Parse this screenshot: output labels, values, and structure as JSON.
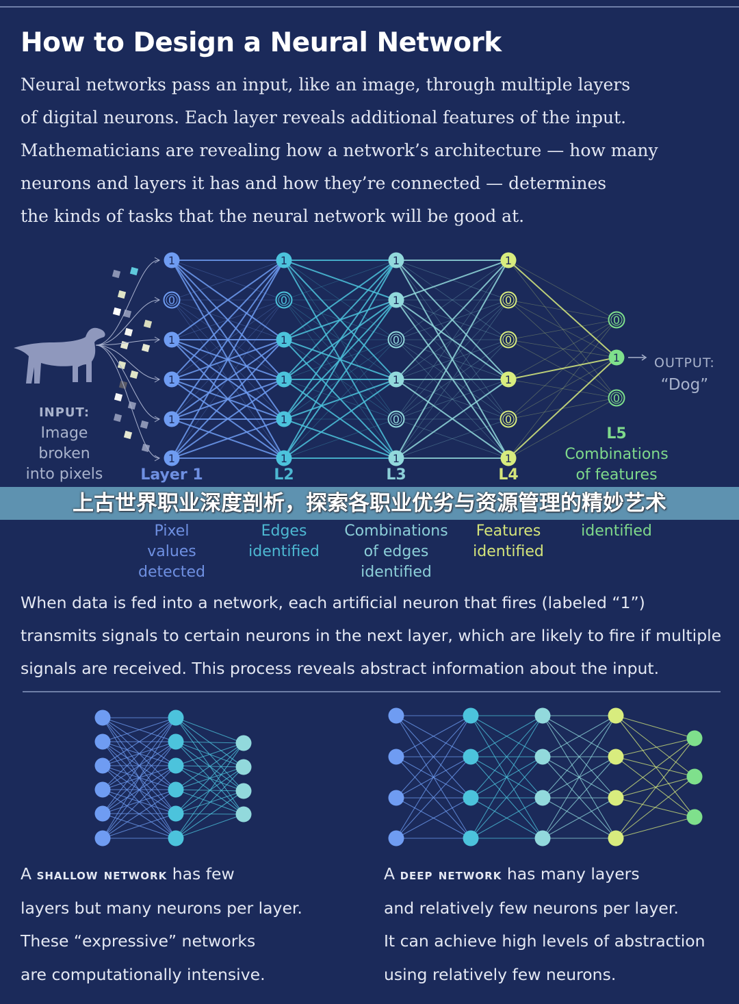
{
  "title": "How to Design a Neural Network",
  "intro_lines": [
    "Neural networks pass an input, like an image, through multiple layers",
    "of digital neurons. Each layer reveals additional features of the input.",
    "Mathematicians are revealing how a network’s architecture — how many",
    "neurons and layers it has and how they’re connected — determines",
    "the kinds of tasks that the neural network will be good at."
  ],
  "diagram": {
    "input_label": {
      "heading": "INPUT:",
      "lines": [
        "Image",
        "broken",
        "into pixels"
      ]
    },
    "output_label": {
      "heading": "OUTPUT:",
      "value": "“Dog”"
    },
    "layers": [
      {
        "color": "#6f9cf2",
        "label_color": "#6f90e2",
        "values": [
          1,
          0,
          1,
          1,
          1,
          1
        ],
        "heading": "Layer 1",
        "lines": [
          "Pixel",
          "values",
          "detected"
        ]
      },
      {
        "color": "#4cc3dc",
        "label_color": "#4db8d2",
        "values": [
          1,
          0,
          1,
          1,
          1,
          1
        ],
        "heading": "L2",
        "lines": [
          "Edges",
          "identified"
        ]
      },
      {
        "color": "#92d9dc",
        "label_color": "#8ccfd8",
        "values": [
          1,
          1,
          0,
          1,
          0,
          1
        ],
        "heading": "L3",
        "lines": [
          "Combinations",
          "of edges",
          "identified"
        ]
      },
      {
        "color": "#d8ec7e",
        "label_color": "#d4e47a",
        "values": [
          1,
          0,
          0,
          1,
          0,
          1
        ],
        "heading": "L4",
        "lines": [
          "Features",
          "identified"
        ]
      },
      {
        "color": "#7fe08c",
        "label_color": "#7fd98b",
        "values": [
          0,
          1,
          0
        ],
        "heading": "L5",
        "lines": [
          "Combinations",
          "of features",
          "identified"
        ]
      }
    ]
  },
  "banner": "上古世界职业深度剖析，探索各职业优劣与资源管理的精妙艺术",
  "explanation_lines": [
    "When data is fed into a network, each artificial neuron that fires (labeled “1”)",
    "transmits signals to certain neurons in the next layer, which are likely to fire if multiple",
    "signals are received. This process reveals abstract information about the input."
  ],
  "shallow": {
    "layer_sizes": [
      6,
      6,
      4
    ],
    "colors": [
      "#6f9cf2",
      "#4cc3dc",
      "#92d9dc"
    ],
    "caption_prefix": "A",
    "caption_term": "shallow network",
    "caption_first_rest": "has few",
    "caption_lines": [
      "layers but many neurons per layer.",
      "These “expressive” networks",
      "are computationally intensive."
    ]
  },
  "deep": {
    "layer_sizes": [
      4,
      4,
      4,
      4,
      3
    ],
    "colors": [
      "#6f9cf2",
      "#4cc3dc",
      "#92d9dc",
      "#d8ec7e",
      "#7fe08c"
    ],
    "caption_prefix": "A",
    "caption_term": "deep network",
    "caption_first_rest": "has many layers",
    "caption_lines": [
      "and relatively few neurons per layer.",
      "It can achieve high levels of abstraction",
      "using relatively few neurons."
    ]
  },
  "colors": {
    "background": "#1b2a5a",
    "banner": "#68a0bc"
  }
}
